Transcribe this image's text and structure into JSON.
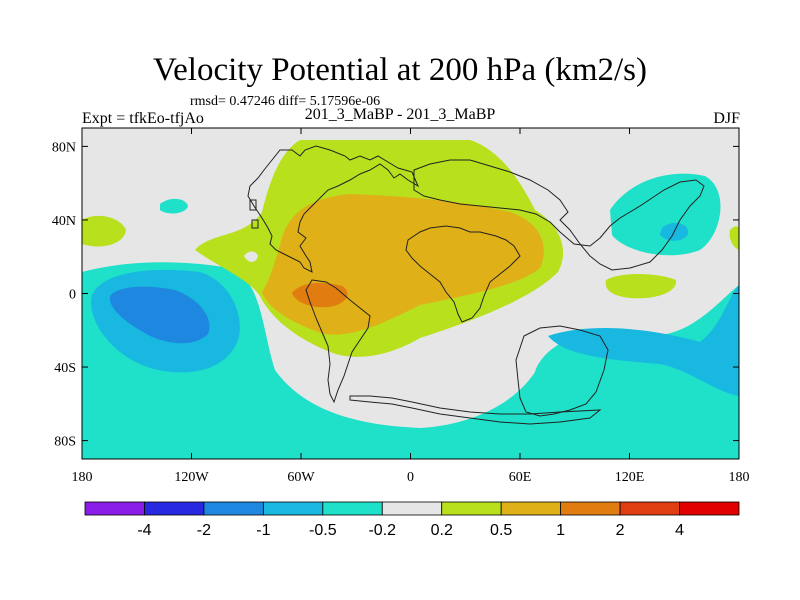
{
  "header": {
    "title": "Velocity Potential at 200 hPa (km2/s)",
    "stats": "rmsd= 0.47246 diff= 5.17596e-06",
    "left_label": "Expt = tfkEo-tfjAo",
    "center_label": "201_3_MaBP - 201_3_MaBP",
    "right_label": "DJF"
  },
  "map": {
    "projection": "cylindrical equidistant",
    "lon_range": [
      -180,
      180
    ],
    "lat_range": [
      -90,
      90
    ],
    "x_ticks": [
      {
        "value": -180,
        "label": "180"
      },
      {
        "value": -120,
        "label": "120W"
      },
      {
        "value": -60,
        "label": "60W"
      },
      {
        "value": 0,
        "label": "0"
      },
      {
        "value": 60,
        "label": "60E"
      },
      {
        "value": 120,
        "label": "120E"
      },
      {
        "value": 180,
        "label": "180"
      }
    ],
    "y_ticks": [
      {
        "value": 80,
        "label": "80N"
      },
      {
        "value": 40,
        "label": "40N"
      },
      {
        "value": 0,
        "label": "0"
      },
      {
        "value": -40,
        "label": "40S"
      },
      {
        "value": -80,
        "label": "80S"
      }
    ],
    "background_color": "#e6e6e6"
  },
  "colorbar": {
    "colors": [
      "#8a1ee8",
      "#2828e0",
      "#1e88e0",
      "#18b8e0",
      "#1fe0c8",
      "#e6e6e6",
      "#b8e01c",
      "#e0b018",
      "#e07c10",
      "#e03e10",
      "#e00000"
    ],
    "labels": [
      "-4",
      "-2",
      "-1",
      "-0.5",
      "-0.2",
      "0.2",
      "0.5",
      "1",
      "2",
      "4"
    ]
  }
}
